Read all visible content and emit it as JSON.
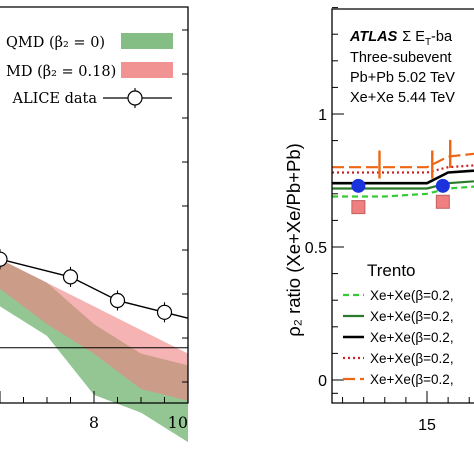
{
  "chart_data": [
    {
      "type": "area",
      "title": "",
      "xlabel": "",
      "ylabel": "",
      "x_range": [
        6,
        10
      ],
      "x_ticks": [
        "8",
        "10"
      ],
      "legend_position": "top-right",
      "legend": {
        "entry1": "QMD (β₂ = 0)",
        "entry2": "MD (β₂ = 0.18)",
        "entry3": "ALICE data"
      },
      "series": [
        {
          "name": "QMD (β₂ = 0)",
          "color": "#6fb36f",
          "x": [
            6.0,
            7.0,
            8.0,
            9.0,
            10.0
          ],
          "upper": [
            0.6,
            0.4,
            0.05,
            -0.2,
            -0.3
          ],
          "lower": [
            0.2,
            -0.05,
            -0.55,
            -0.7,
            -0.95
          ]
        },
        {
          "name": "MD (β₂ = 0.18)",
          "color": "#f08080",
          "x": [
            6.0,
            7.0,
            8.0,
            9.0,
            10.0
          ],
          "upper": [
            0.6,
            0.4,
            0.2,
            0.0,
            -0.2
          ],
          "lower": [
            0.35,
            0.05,
            -0.2,
            -0.5,
            -0.6
          ]
        },
        {
          "name": "ALICE data",
          "color": "#000000",
          "x": [
            6.0,
            7.5,
            8.5,
            9.5,
            10.0
          ],
          "y": [
            0.6,
            0.45,
            0.25,
            0.15,
            0.1
          ]
        }
      ],
      "reference_line_y": -0.15
    },
    {
      "type": "line",
      "title": "",
      "ylabel": "ρ₂ ratio (Xe+Xe/Pb+Pb)",
      "xlabel": "",
      "y_range": [
        -0.1,
        1.45
      ],
      "y_ticks": [
        "0",
        "0.5",
        "1"
      ],
      "x_range": [
        6,
        24
      ],
      "x_ticks": [
        "15"
      ],
      "annotation": {
        "brand": "ATLAS",
        "line1_rest": "Σ E",
        "line1_sub": "T",
        "line1_tail": "-ba",
        "line2": "Three-subevent",
        "line3": "Pb+Pb 5.02 TeV",
        "line4": "Xe+Xe 5.44 TeV"
      },
      "legend": {
        "title": "Trento",
        "entries": [
          "Xe+Xe(β=0.2,",
          "Xe+Xe(β=0.2,",
          "Xe+Xe(β=0.2,",
          "Xe+Xe(β=0.2,",
          "Xe+Xe(β=0.2,"
        ]
      },
      "series": [
        {
          "name": "Xe+Xe(β=0.2,",
          "color": "#33cc33",
          "style": "dashed",
          "x": [
            6,
            11,
            15,
            17,
            24
          ],
          "y": [
            0.69,
            0.69,
            0.7,
            0.72,
            0.74
          ]
        },
        {
          "name": "Xe+Xe(β=0.2,",
          "color": "#2a7a2a",
          "style": "solid",
          "x": [
            6,
            11,
            15,
            17,
            24
          ],
          "y": [
            0.72,
            0.72,
            0.72,
            0.74,
            0.76
          ]
        },
        {
          "name": "Xe+Xe(β=0.2,",
          "color": "#000000",
          "style": "solid",
          "x": [
            6,
            11,
            15,
            17,
            24
          ],
          "y": [
            0.74,
            0.74,
            0.74,
            0.78,
            0.8
          ]
        },
        {
          "name": "Xe+Xe(β=0.2,",
          "color": "#cc2222",
          "style": "dotted",
          "x": [
            6,
            11,
            15,
            17,
            24
          ],
          "y": [
            0.78,
            0.78,
            0.78,
            0.8,
            0.82
          ]
        },
        {
          "name": "Xe+Xe(β=0.2,",
          "color": "#ee6611",
          "style": "longdash",
          "x": [
            6,
            11,
            15,
            17,
            24
          ],
          "y": [
            0.8,
            0.8,
            0.8,
            0.84,
            0.87
          ]
        }
      ],
      "data_points": {
        "blue_circles": {
          "color": "#1a33dd",
          "x": [
            8.5,
            16.5
          ],
          "y": [
            0.73,
            0.73
          ]
        },
        "red_squares": {
          "color": "#f08080",
          "x": [
            8.5,
            16.5
          ],
          "y": [
            0.65,
            0.67
          ]
        }
      }
    }
  ]
}
